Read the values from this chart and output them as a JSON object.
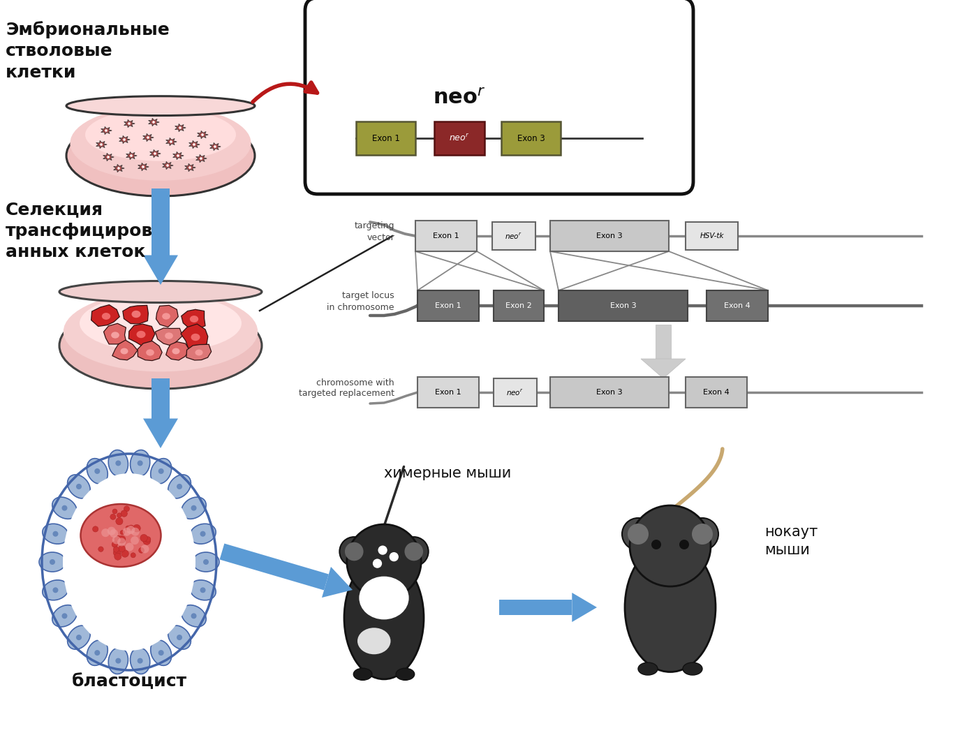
{
  "background_color": "#ffffff",
  "text_embryo": "Эмбриональные\nстволовые\nклетки",
  "text_selection": "Селекция\nтрансфициров\nанных клеток",
  "text_blastocyst": "бластоцист",
  "text_chimeric": "химерные мыши",
  "text_knockout": "нокаут\nмыши",
  "text_targeting_vector": "targeting\nvector",
  "text_target_locus": "target locus\nin chromosome",
  "text_chromosome_targeted": "chromosome with\ntargeted replacement",
  "arrow_blue": "#5B9BD5",
  "arrow_red": "#B22020"
}
